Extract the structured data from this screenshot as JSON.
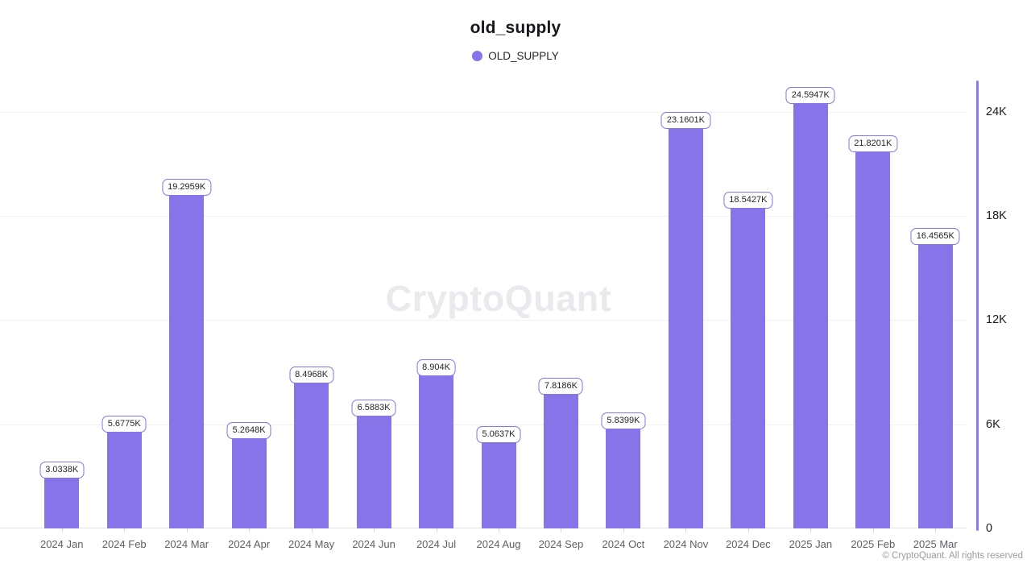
{
  "header": {
    "title": "old_supply",
    "legend": {
      "label": "OLD_SUPPLY",
      "marker_color": "#8674e8"
    }
  },
  "watermark": "CryptoQuant",
  "footer": {
    "copyright": "© CryptoQuant. All rights reserved"
  },
  "colors": {
    "bar": "#8674e8",
    "label_border": "#8674e8",
    "y_axis_line": "#8a7aea",
    "gridline": "#f1f1f5",
    "x_axis_line": "#e2e2e8",
    "x_label": "#5e6066",
    "y_label": "#1b1b21"
  },
  "chart_data": {
    "type": "bar",
    "title": "old_supply",
    "series_name": "OLD_SUPPLY",
    "categories": [
      "2024 Jan",
      "2024 Feb",
      "2024 Mar",
      "2024 Apr",
      "2024 May",
      "2024 Jun",
      "2024 Jul",
      "2024 Aug",
      "2024 Sep",
      "2024 Oct",
      "2024 Nov",
      "2024 Dec",
      "2025 Jan",
      "2025 Feb",
      "2025 Mar"
    ],
    "values_thousands": [
      3.0338,
      5.6775,
      19.2959,
      5.2648,
      8.4968,
      6.5883,
      8.904,
      5.0637,
      7.8186,
      5.8399,
      23.1601,
      18.5427,
      24.5947,
      21.8201,
      16.4565
    ],
    "bar_labels": [
      "3.0338K",
      "5.6775K",
      "19.2959K",
      "5.2648K",
      "8.4968K",
      "6.5883K",
      "8.904K",
      "5.0637K",
      "7.8186K",
      "5.8399K",
      "23.1601K",
      "18.5427K",
      "24.5947K",
      "21.8201K",
      "16.4565K"
    ],
    "y_ticks": [
      {
        "value": 0,
        "label": "0"
      },
      {
        "value": 6,
        "label": "6K"
      },
      {
        "value": 12,
        "label": "12K"
      },
      {
        "value": 18,
        "label": "18K"
      },
      {
        "value": 24,
        "label": "24K"
      }
    ],
    "ylim": [
      0,
      24
    ],
    "unit": "K",
    "legend_position": "top",
    "grid": "horizontal",
    "y_axis_side": "right"
  }
}
